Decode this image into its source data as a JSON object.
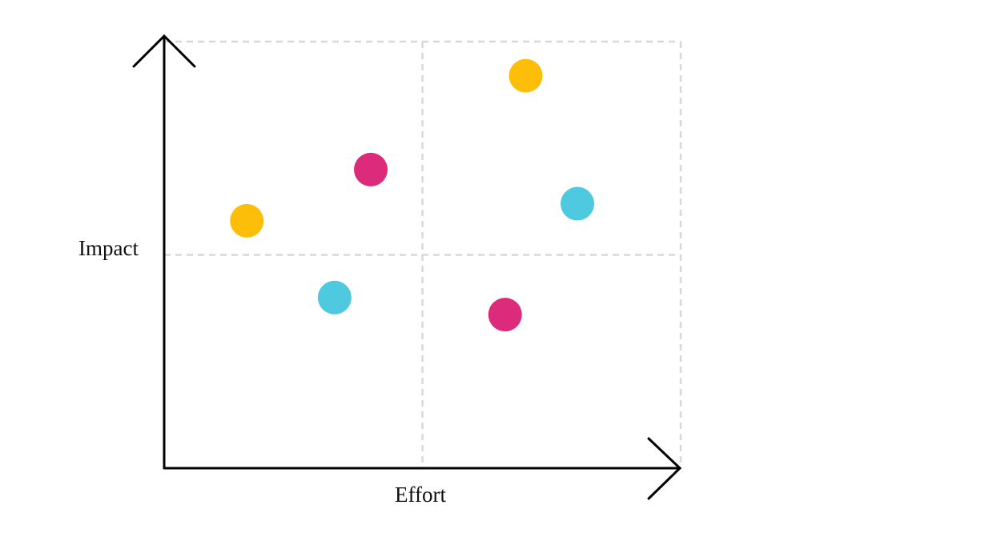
{
  "chart_data": {
    "type": "scatter",
    "x_label": "Effort",
    "y_label": "Impact",
    "x": [
      70,
      40,
      16,
      80,
      33,
      66
    ],
    "y": [
      92,
      70,
      58,
      62,
      40,
      36
    ],
    "colors": [
      "#fdbe0a",
      "#dc2b7a",
      "#fdbe0a",
      "#4ec9df",
      "#4ec9df",
      "#dc2b7a"
    ],
    "xlim": [
      0,
      100
    ],
    "ylim": [
      0,
      100
    ],
    "grid": true
  }
}
